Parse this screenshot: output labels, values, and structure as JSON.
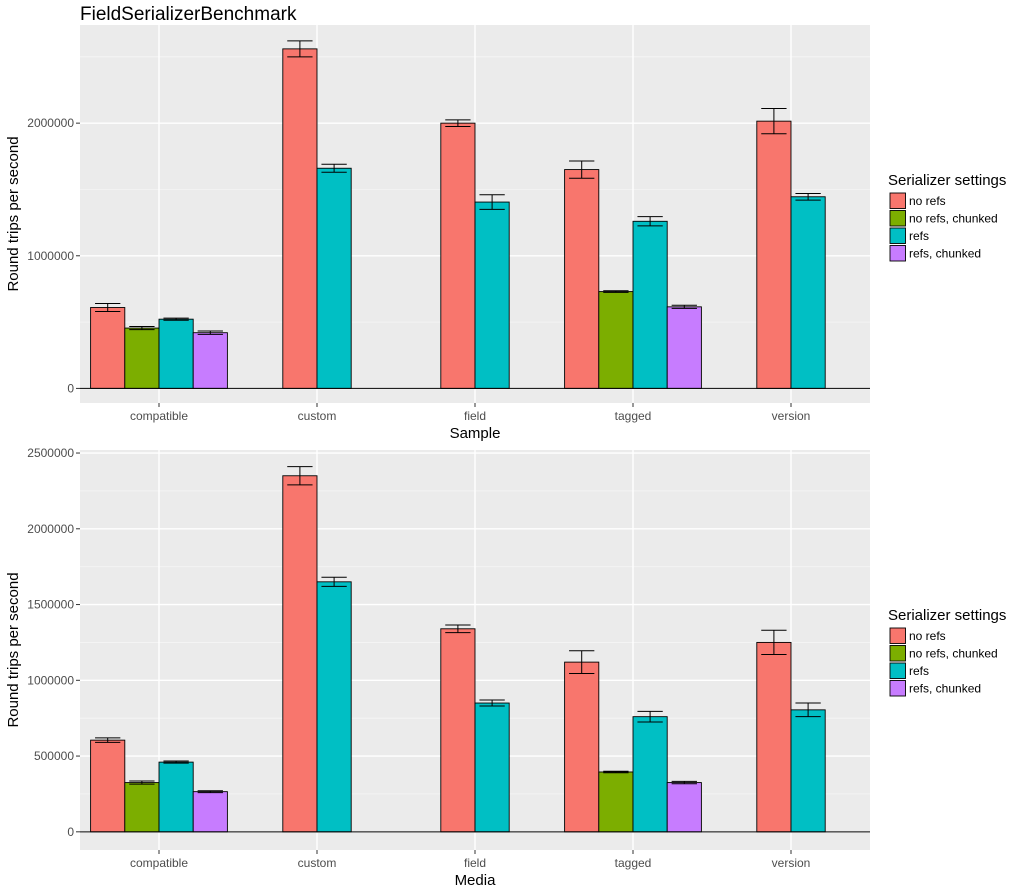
{
  "chart_data": [
    {
      "type": "bar",
      "title": "FieldSerializerBenchmark",
      "xlabel": "Sample",
      "ylabel": "Round trips per second",
      "categories": [
        "compatible",
        "custom",
        "field",
        "tagged",
        "version"
      ],
      "ylim": [
        -110000,
        2740000
      ],
      "yticks": [
        0,
        1000000,
        2000000
      ],
      "ytick_labels": [
        "0",
        "1000000",
        "2000000"
      ],
      "legend_title": "Serializer settings",
      "series": [
        {
          "name": "no refs",
          "color": "#F8766D",
          "values": [
            610000,
            2560000,
            2000000,
            1650000,
            2015000
          ],
          "err": [
            30000,
            60000,
            25000,
            65000,
            95000
          ]
        },
        {
          "name": "no refs, chunked",
          "color": "#7CAE00",
          "values": [
            455000,
            null,
            null,
            730000,
            null
          ],
          "err": [
            12000,
            null,
            null,
            6000,
            null
          ]
        },
        {
          "name": "refs",
          "color": "#00BFC4",
          "values": [
            522000,
            1660000,
            1405000,
            1260000,
            1445000
          ],
          "err": [
            8000,
            30000,
            55000,
            35000,
            25000
          ]
        },
        {
          "name": "refs, chunked",
          "color": "#C77CFF",
          "values": [
            420000,
            null,
            null,
            615000,
            null
          ],
          "err": [
            13000,
            null,
            null,
            12000,
            null
          ]
        }
      ]
    },
    {
      "type": "bar",
      "title": "",
      "xlabel": "Media",
      "ylabel": "Round trips per second",
      "categories": [
        "compatible",
        "custom",
        "field",
        "tagged",
        "version"
      ],
      "ylim": [
        -120000,
        2520000
      ],
      "yticks": [
        0,
        500000,
        1000000,
        1500000,
        2000000,
        2500000
      ],
      "ytick_labels": [
        "0",
        "500000",
        "1000000",
        "1500000",
        "2000000",
        "2500000"
      ],
      "legend_title": "Serializer settings",
      "series": [
        {
          "name": "no refs",
          "color": "#F8766D",
          "values": [
            605000,
            2350000,
            1340000,
            1120000,
            1250000
          ],
          "err": [
            15000,
            60000,
            25000,
            75000,
            80000
          ]
        },
        {
          "name": "no refs, chunked",
          "color": "#7CAE00",
          "values": [
            325000,
            null,
            null,
            395000,
            null
          ],
          "err": [
            10000,
            null,
            null,
            5000,
            null
          ]
        },
        {
          "name": "refs",
          "color": "#00BFC4",
          "values": [
            460000,
            1650000,
            850000,
            760000,
            805000
          ],
          "err": [
            7000,
            30000,
            20000,
            35000,
            45000
          ]
        },
        {
          "name": "refs, chunked",
          "color": "#C77CFF",
          "values": [
            265000,
            null,
            null,
            325000,
            null
          ],
          "err": [
            6000,
            null,
            null,
            8000,
            null
          ]
        }
      ]
    }
  ]
}
